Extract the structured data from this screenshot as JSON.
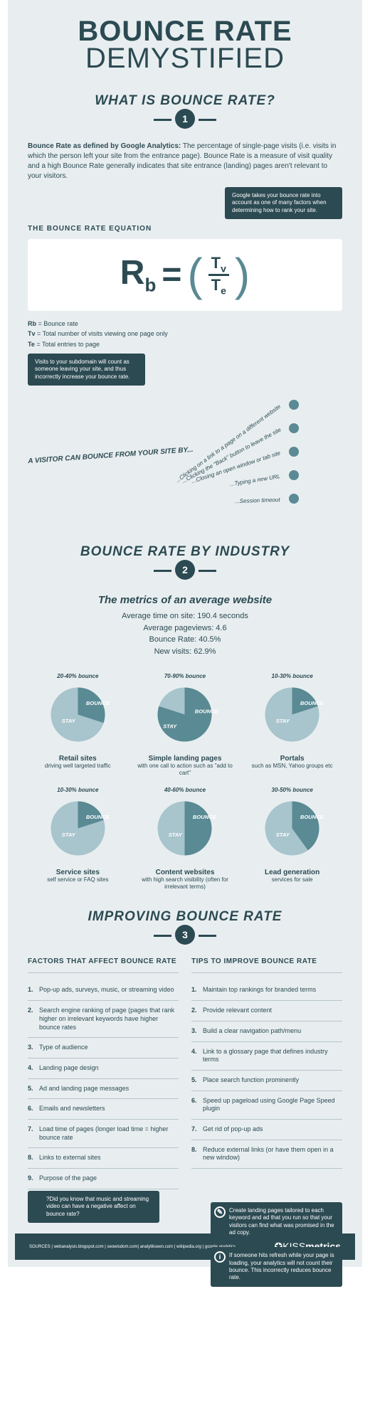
{
  "title_line1": "BOUNCE RATE",
  "title_line2": "DEMYSTIFIED",
  "section1": {
    "heading": "WHAT IS BOUNCE RATE?",
    "num": "1",
    "intro_bold": "Bounce Rate as defined by Google Analytics:",
    "intro_text": " The percentage of single-page visits (i.e. visits in which the person left your site from the entrance page). Bounce Rate is a measure of visit quality and a high Bounce Rate generally indicates that site entrance (landing) pages aren't relevant to your visitors.",
    "callout1": "Google takes your bounce rate into account as one of many factors when determining how to rank your site.",
    "eq_heading": "THE BOUNCE RATE EQUATION",
    "legend_rb_k": "Rb",
    "legend_rb_v": " = Bounce rate",
    "legend_tv_k": "Tv",
    "legend_tv_v": " = Total number of visits viewing one page only",
    "legend_te_k": "Te",
    "legend_te_v": " = Total entries to page",
    "callout2": "Visits to your subdomain will count as someone leaving your site, and thus incorrectly increase your bounce rate.",
    "bounce_intro": "A VISITOR CAN BOUNCE FROM YOUR SITE BY...",
    "bounce_items": [
      "...Clicking on a link to a page on a different website",
      "...Clicking the \"Back\" button to leave the site",
      "...Closing an open window or tab site",
      "...Typing a new URL",
      "...Session timeout"
    ]
  },
  "section2": {
    "heading": "BOUNCE RATE BY INDUSTRY",
    "num": "2",
    "metrics_title": "The metrics of an average website",
    "m1": "Average time on site: 190.4 seconds",
    "m2": "Average pageviews: 4.6",
    "m3": "Bounce Rate: 40.5%",
    "m4": "New visits: 62.9%",
    "stay_color": "#a8c4cc",
    "bounce_color": "#5a8a94",
    "pies": [
      {
        "range": "20-40% bounce",
        "angle": 108,
        "title": "Retail sites",
        "desc": "driving well targeted traffic"
      },
      {
        "range": "70-90% bounce",
        "angle": 288,
        "title": "Simple landing pages",
        "desc": "with one call to action such as \"add to cart\""
      },
      {
        "range": "10-30% bounce",
        "angle": 72,
        "title": "Portals",
        "desc": "such as MSN, Yahoo groups etc"
      },
      {
        "range": "10-30% bounce",
        "angle": 72,
        "title": "Service sites",
        "desc": "self service or FAQ sites"
      },
      {
        "range": "40-60% bounce",
        "angle": 180,
        "title": "Content websites",
        "desc": "with high search visibility (often for irrelevant terms)"
      },
      {
        "range": "30-50% bounce",
        "angle": 144,
        "title": "Lead generation",
        "desc": "services for sale"
      }
    ]
  },
  "section3": {
    "heading": "IMPROVING BOUNCE RATE",
    "num": "3",
    "factors_title": "FACTORS THAT AFFECT BOUNCE RATE",
    "tips_title": "TIPS TO IMPROVE BOUNCE RATE",
    "factors": [
      "Pop-up ads, surveys, music, or streaming video",
      "Search engine ranking of page (pages that rank higher on irrelevant keywords have higher bounce rates",
      "Type of audience",
      "Landing page design",
      "Ad and landing page messages",
      "Emails and newsletters",
      "Load time of pages (longer load time = higher bounce rate",
      "Links to external sites",
      "Purpose of the page"
    ],
    "tips": [
      "Maintain top rankings for branded terms",
      "Provide relevant content",
      "Build a clear navigation path/menu",
      "Link to a glossary page that defines industry terms",
      "Place search function prominently",
      "Speed up pageload using Google Page Speed plugin",
      "Get rid of pop-up ads",
      "Reduce external links (or have them open in a new window)"
    ],
    "callout_left": "Did you know that music and streaming video can have a negative affect on bounce rate?",
    "callout_r1": "Create landing pages tailored to each keyword and ad that you run so that your visitors can find what was promised in the ad copy.",
    "callout_r2": "If someone hits refresh while your page is loading, your analytics will not count their bounce. This incorrectly reduces bounce rate."
  },
  "footer": {
    "sources": "SOURCES | webanalysis.blogspot.com | seowisdom.com| analytikseen.com | wikipedia.org | google analytics",
    "brand_light": "KISS",
    "brand_bold": "metrics"
  }
}
